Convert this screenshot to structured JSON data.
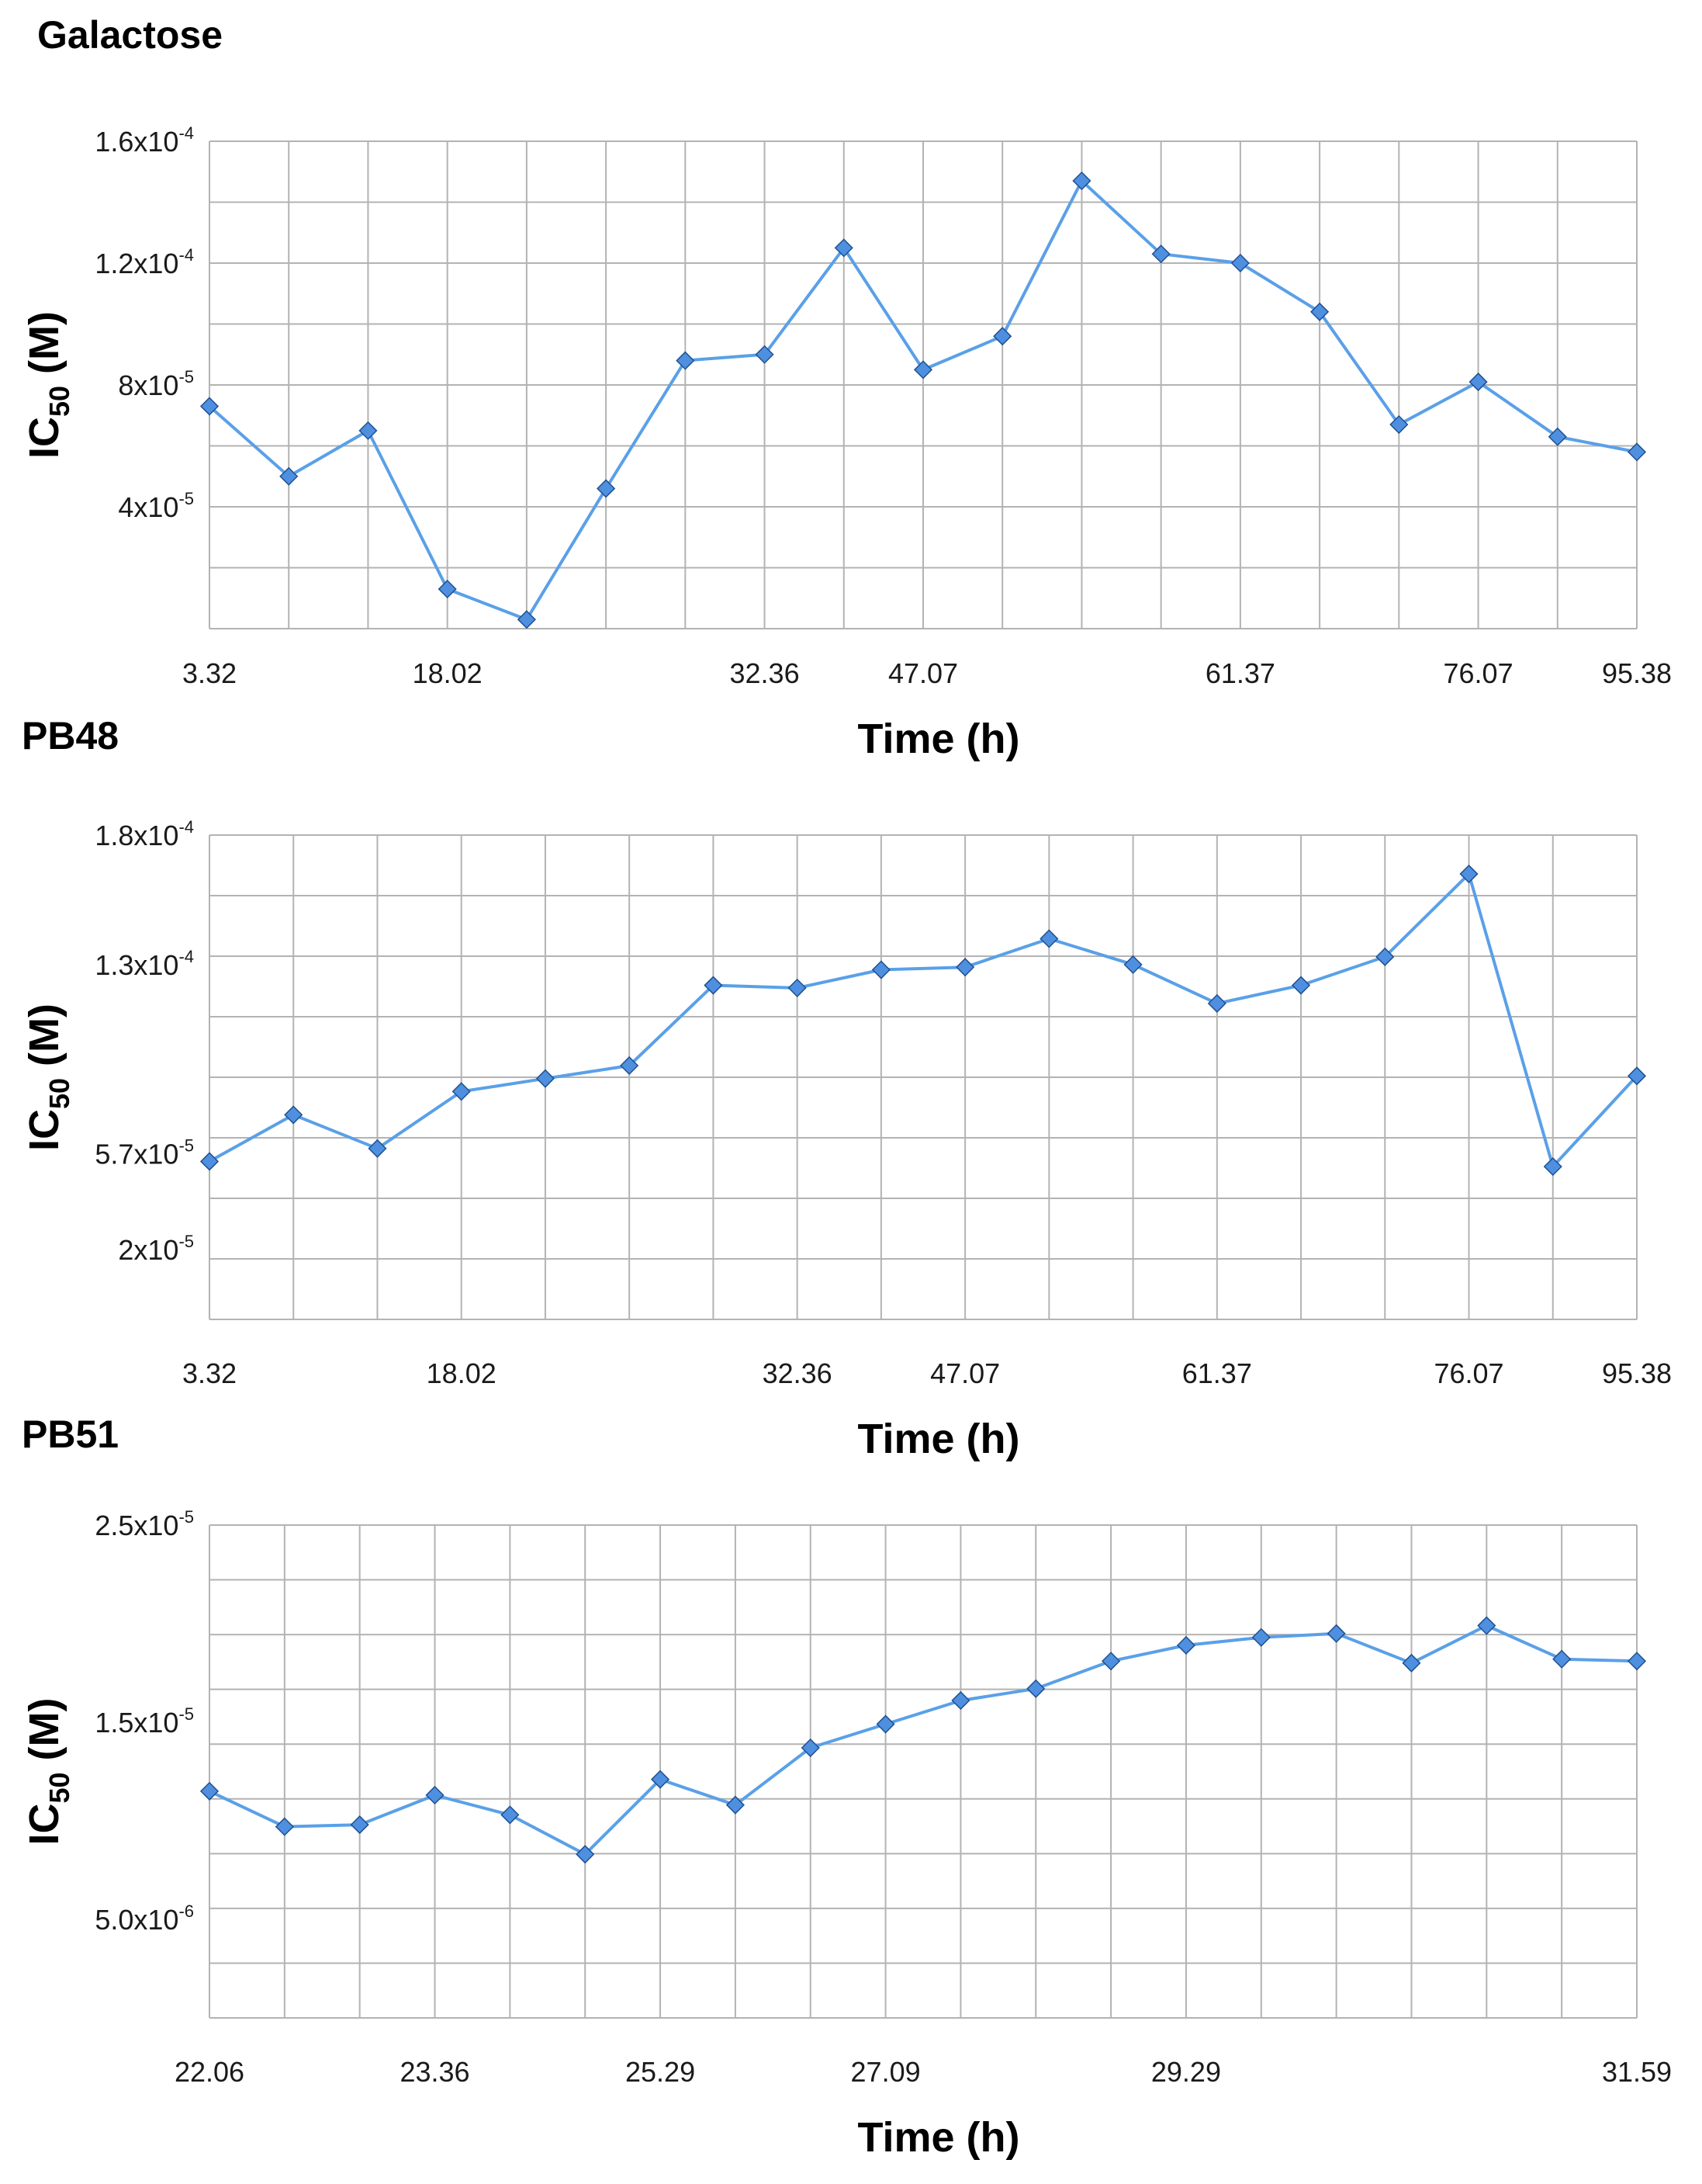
{
  "chart_data": [
    {
      "type": "line",
      "title": "Galactose",
      "xlabel": "Time (h)",
      "ylabel": "IC",
      "ylabel_sub": "50",
      "ylabel_suffix": " (M)",
      "ylim": [
        0,
        0.00016
      ],
      "grid": true,
      "y_ticks": [
        {
          "value": 4e-05,
          "mantissa": "4x10",
          "exp": "-5"
        },
        {
          "value": 8e-05,
          "mantissa": "8x10",
          "exp": "-5"
        },
        {
          "value": 0.00012,
          "mantissa": "1.2x10",
          "exp": "-4"
        },
        {
          "value": 0.00016,
          "mantissa": "1.6x10",
          "exp": "-4"
        }
      ],
      "x_tick_labels": [
        {
          "index": 0,
          "label": "3.32"
        },
        {
          "index": 3,
          "label": "18.02"
        },
        {
          "index": 7,
          "label": "32.36"
        },
        {
          "index": 9,
          "label": "47.07"
        },
        {
          "index": 13,
          "label": "61.37"
        },
        {
          "index": 16,
          "label": "76.07"
        },
        {
          "index": 18,
          "label": "95.38"
        }
      ],
      "series": [
        {
          "values": [
            7.3e-05,
            5e-05,
            6.5e-05,
            1.3e-05,
            3e-06,
            4.6e-05,
            8.8e-05,
            9e-05,
            0.000125,
            8.5e-05,
            9.6e-05,
            0.000147,
            0.000123,
            0.00012,
            0.000104,
            6.7e-05,
            8.1e-05,
            6.3e-05,
            5.8e-05
          ]
        }
      ]
    },
    {
      "type": "line",
      "title": "PB48",
      "xlabel": "Time (h)",
      "ylabel": "IC",
      "ylabel_sub": "50",
      "ylabel_suffix": " (M)",
      "ylim": [
        -7e-06,
        0.00018
      ],
      "grid": true,
      "y_ticks": [
        {
          "value": 2e-05,
          "mantissa": "2x10",
          "exp": "-5"
        },
        {
          "value": 5.7e-05,
          "mantissa": "5.7x10",
          "exp": "-5"
        },
        {
          "value": 0.00013,
          "mantissa": "1.3x10",
          "exp": "-4"
        },
        {
          "value": 0.00018,
          "mantissa": "1.8x10",
          "exp": "-4"
        }
      ],
      "x_tick_labels": [
        {
          "index": 0,
          "label": "3.32"
        },
        {
          "index": 3,
          "label": "18.02"
        },
        {
          "index": 7,
          "label": "32.36"
        },
        {
          "index": 9,
          "label": "47.07"
        },
        {
          "index": 12,
          "label": "61.37"
        },
        {
          "index": 15,
          "label": "76.07"
        },
        {
          "index": 17,
          "label": "95.38"
        }
      ],
      "series": [
        {
          "values": [
            5.4e-05,
            7.2e-05,
            5.9e-05,
            8.1e-05,
            8.6e-05,
            9.1e-05,
            0.000122,
            0.000121,
            0.000128,
            0.000129,
            0.00014,
            0.00013,
            0.000115,
            0.000122,
            0.000133,
            0.000165,
            5.2e-05,
            8.7e-05
          ]
        }
      ]
    },
    {
      "type": "line",
      "title": "PB51",
      "xlabel": "Time (h)",
      "ylabel": "IC",
      "ylabel_sub": "50",
      "ylabel_suffix": " (M)",
      "ylim": [
        0,
        2.5e-05
      ],
      "grid": true,
      "y_ticks": [
        {
          "value": 5e-06,
          "mantissa": "5.0x10",
          "exp": "-6"
        },
        {
          "value": 1.5e-05,
          "mantissa": "1.5x10",
          "exp": "-5"
        },
        {
          "value": 2.5e-05,
          "mantissa": "2.5x10",
          "exp": "-5"
        }
      ],
      "x_tick_labels": [
        {
          "index": 0,
          "label": "22.06"
        },
        {
          "index": 3,
          "label": "23.36"
        },
        {
          "index": 6,
          "label": "25.29"
        },
        {
          "index": 9,
          "label": "27.09"
        },
        {
          "index": 13,
          "label": "29.29"
        },
        {
          "index": 19,
          "label": "31.59"
        }
      ],
      "series": [
        {
          "values": [
            1.15e-05,
            9.7e-06,
            9.8e-06,
            1.13e-05,
            1.03e-05,
            8.3e-06,
            1.21e-05,
            1.08e-05,
            1.37e-05,
            1.49e-05,
            1.61e-05,
            1.67e-05,
            1.81e-05,
            1.89e-05,
            1.93e-05,
            1.95e-05,
            1.8e-05,
            1.99e-05,
            1.82e-05,
            1.81e-05
          ]
        }
      ]
    }
  ]
}
